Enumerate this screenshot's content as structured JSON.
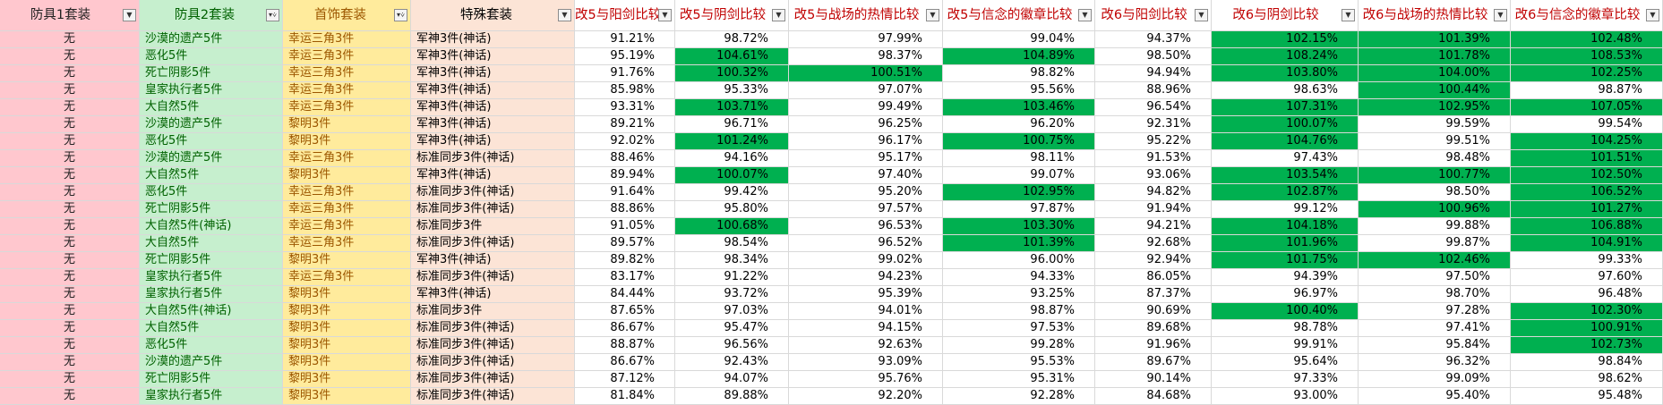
{
  "headers": [
    {
      "label": "防具1套装",
      "filter": "dropdown"
    },
    {
      "label": "防具2套装",
      "filter": "filtered"
    },
    {
      "label": "首饰套装",
      "filter": "filtered"
    },
    {
      "label": "特殊套装",
      "filter": "dropdown"
    },
    {
      "label": "改5与阳剑比较",
      "filter": "dropdown"
    },
    {
      "label": "改5与阴剑比较",
      "filter": "dropdown"
    },
    {
      "label": "改5与战场的热情比较",
      "filter": "dropdown"
    },
    {
      "label": "改5与信念的徽章比较",
      "filter": "dropdown"
    },
    {
      "label": "改6与阳剑比较",
      "filter": "dropdown"
    },
    {
      "label": "改6与阴剑比较",
      "filter": "dropdown"
    },
    {
      "label": "改6与战场的热情比较",
      "filter": "dropdown"
    },
    {
      "label": "改6与信念的徽章比较",
      "filter": "dropdown"
    }
  ],
  "colors": {
    "highlight": "#00b050"
  },
  "rows": [
    {
      "a1": "无",
      "a2": "沙漠的遗产5件",
      "acc": "幸运三角3件",
      "sp": "军神3件(神话)",
      "v": [
        {
          "t": "91.21%",
          "h": false
        },
        {
          "t": "98.72%",
          "h": false
        },
        {
          "t": "97.99%",
          "h": false
        },
        {
          "t": "99.04%",
          "h": false
        },
        {
          "t": "94.37%",
          "h": false
        },
        {
          "t": "102.15%",
          "h": true
        },
        {
          "t": "101.39%",
          "h": true
        },
        {
          "t": "102.48%",
          "h": true
        }
      ]
    },
    {
      "a1": "无",
      "a2": "恶化5件",
      "acc": "幸运三角3件",
      "sp": "军神3件(神话)",
      "v": [
        {
          "t": "95.19%",
          "h": false
        },
        {
          "t": "104.61%",
          "h": true
        },
        {
          "t": "98.37%",
          "h": false
        },
        {
          "t": "104.89%",
          "h": true
        },
        {
          "t": "98.50%",
          "h": false
        },
        {
          "t": "108.24%",
          "h": true
        },
        {
          "t": "101.78%",
          "h": true
        },
        {
          "t": "108.53%",
          "h": true
        }
      ]
    },
    {
      "a1": "无",
      "a2": "死亡阴影5件",
      "acc": "幸运三角3件",
      "sp": "军神3件(神话)",
      "v": [
        {
          "t": "91.76%",
          "h": false
        },
        {
          "t": "100.32%",
          "h": true
        },
        {
          "t": "100.51%",
          "h": true
        },
        {
          "t": "98.82%",
          "h": false
        },
        {
          "t": "94.94%",
          "h": false
        },
        {
          "t": "103.80%",
          "h": true
        },
        {
          "t": "104.00%",
          "h": true
        },
        {
          "t": "102.25%",
          "h": true
        }
      ]
    },
    {
      "a1": "无",
      "a2": "皇家执行者5件",
      "acc": "幸运三角3件",
      "sp": "军神3件(神话)",
      "v": [
        {
          "t": "85.98%",
          "h": false
        },
        {
          "t": "95.33%",
          "h": false
        },
        {
          "t": "97.07%",
          "h": false
        },
        {
          "t": "95.56%",
          "h": false
        },
        {
          "t": "88.96%",
          "h": false
        },
        {
          "t": "98.63%",
          "h": false
        },
        {
          "t": "100.44%",
          "h": true
        },
        {
          "t": "98.87%",
          "h": false
        }
      ]
    },
    {
      "a1": "无",
      "a2": "大自然5件",
      "acc": "幸运三角3件",
      "sp": "军神3件(神话)",
      "v": [
        {
          "t": "93.31%",
          "h": false
        },
        {
          "t": "103.71%",
          "h": true
        },
        {
          "t": "99.49%",
          "h": false
        },
        {
          "t": "103.46%",
          "h": true
        },
        {
          "t": "96.54%",
          "h": false
        },
        {
          "t": "107.31%",
          "h": true
        },
        {
          "t": "102.95%",
          "h": true
        },
        {
          "t": "107.05%",
          "h": true
        }
      ]
    },
    {
      "a1": "无",
      "a2": "沙漠的遗产5件",
      "acc": "黎明3件",
      "sp": "军神3件(神话)",
      "v": [
        {
          "t": "89.21%",
          "h": false
        },
        {
          "t": "96.71%",
          "h": false
        },
        {
          "t": "96.25%",
          "h": false
        },
        {
          "t": "96.20%",
          "h": false
        },
        {
          "t": "92.31%",
          "h": false
        },
        {
          "t": "100.07%",
          "h": true
        },
        {
          "t": "99.59%",
          "h": false
        },
        {
          "t": "99.54%",
          "h": false
        }
      ]
    },
    {
      "a1": "无",
      "a2": "恶化5件",
      "acc": "黎明3件",
      "sp": "军神3件(神话)",
      "v": [
        {
          "t": "92.02%",
          "h": false
        },
        {
          "t": "101.24%",
          "h": true
        },
        {
          "t": "96.17%",
          "h": false
        },
        {
          "t": "100.75%",
          "h": true
        },
        {
          "t": "95.22%",
          "h": false
        },
        {
          "t": "104.76%",
          "h": true
        },
        {
          "t": "99.51%",
          "h": false
        },
        {
          "t": "104.25%",
          "h": true
        }
      ]
    },
    {
      "a1": "无",
      "a2": "沙漠的遗产5件",
      "acc": "幸运三角3件",
      "sp": "标准同步3件(神话)",
      "v": [
        {
          "t": "88.46%",
          "h": false
        },
        {
          "t": "94.16%",
          "h": false
        },
        {
          "t": "95.17%",
          "h": false
        },
        {
          "t": "98.11%",
          "h": false
        },
        {
          "t": "91.53%",
          "h": false
        },
        {
          "t": "97.43%",
          "h": false
        },
        {
          "t": "98.48%",
          "h": false
        },
        {
          "t": "101.51%",
          "h": true
        }
      ]
    },
    {
      "a1": "无",
      "a2": "大自然5件",
      "acc": "黎明3件",
      "sp": "军神3件(神话)",
      "v": [
        {
          "t": "89.94%",
          "h": false
        },
        {
          "t": "100.07%",
          "h": true
        },
        {
          "t": "97.40%",
          "h": false
        },
        {
          "t": "99.07%",
          "h": false
        },
        {
          "t": "93.06%",
          "h": false
        },
        {
          "t": "103.54%",
          "h": true
        },
        {
          "t": "100.77%",
          "h": true
        },
        {
          "t": "102.50%",
          "h": true
        }
      ]
    },
    {
      "a1": "无",
      "a2": "恶化5件",
      "acc": "幸运三角3件",
      "sp": "标准同步3件(神话)",
      "v": [
        {
          "t": "91.64%",
          "h": false
        },
        {
          "t": "99.42%",
          "h": false
        },
        {
          "t": "95.20%",
          "h": false
        },
        {
          "t": "102.95%",
          "h": true
        },
        {
          "t": "94.82%",
          "h": false
        },
        {
          "t": "102.87%",
          "h": true
        },
        {
          "t": "98.50%",
          "h": false
        },
        {
          "t": "106.52%",
          "h": true
        }
      ]
    },
    {
      "a1": "无",
      "a2": "死亡阴影5件",
      "acc": "幸运三角3件",
      "sp": "标准同步3件(神话)",
      "v": [
        {
          "t": "88.86%",
          "h": false
        },
        {
          "t": "95.80%",
          "h": false
        },
        {
          "t": "97.57%",
          "h": false
        },
        {
          "t": "97.87%",
          "h": false
        },
        {
          "t": "91.94%",
          "h": false
        },
        {
          "t": "99.12%",
          "h": false
        },
        {
          "t": "100.96%",
          "h": true
        },
        {
          "t": "101.27%",
          "h": true
        }
      ]
    },
    {
      "a1": "无",
      "a2": "大自然5件(神话)",
      "acc": "幸运三角3件",
      "sp": "标准同步3件",
      "v": [
        {
          "t": "91.05%",
          "h": false
        },
        {
          "t": "100.68%",
          "h": true
        },
        {
          "t": "96.53%",
          "h": false
        },
        {
          "t": "103.30%",
          "h": true
        },
        {
          "t": "94.21%",
          "h": false
        },
        {
          "t": "104.18%",
          "h": true
        },
        {
          "t": "99.88%",
          "h": false
        },
        {
          "t": "106.88%",
          "h": true
        }
      ]
    },
    {
      "a1": "无",
      "a2": "大自然5件",
      "acc": "幸运三角3件",
      "sp": "标准同步3件(神话)",
      "v": [
        {
          "t": "89.57%",
          "h": false
        },
        {
          "t": "98.54%",
          "h": false
        },
        {
          "t": "96.52%",
          "h": false
        },
        {
          "t": "101.39%",
          "h": true
        },
        {
          "t": "92.68%",
          "h": false
        },
        {
          "t": "101.96%",
          "h": true
        },
        {
          "t": "99.87%",
          "h": false
        },
        {
          "t": "104.91%",
          "h": true
        }
      ]
    },
    {
      "a1": "无",
      "a2": "死亡阴影5件",
      "acc": "黎明3件",
      "sp": "军神3件(神话)",
      "v": [
        {
          "t": "89.82%",
          "h": false
        },
        {
          "t": "98.34%",
          "h": false
        },
        {
          "t": "99.02%",
          "h": false
        },
        {
          "t": "96.00%",
          "h": false
        },
        {
          "t": "92.94%",
          "h": false
        },
        {
          "t": "101.75%",
          "h": true
        },
        {
          "t": "102.46%",
          "h": true
        },
        {
          "t": "99.33%",
          "h": false
        }
      ]
    },
    {
      "a1": "无",
      "a2": "皇家执行者5件",
      "acc": "幸运三角3件",
      "sp": "标准同步3件(神话)",
      "v": [
        {
          "t": "83.17%",
          "h": false
        },
        {
          "t": "91.22%",
          "h": false
        },
        {
          "t": "94.23%",
          "h": false
        },
        {
          "t": "94.33%",
          "h": false
        },
        {
          "t": "86.05%",
          "h": false
        },
        {
          "t": "94.39%",
          "h": false
        },
        {
          "t": "97.50%",
          "h": false
        },
        {
          "t": "97.60%",
          "h": false
        }
      ]
    },
    {
      "a1": "无",
      "a2": "皇家执行者5件",
      "acc": "黎明3件",
      "sp": "军神3件(神话)",
      "v": [
        {
          "t": "84.44%",
          "h": false
        },
        {
          "t": "93.72%",
          "h": false
        },
        {
          "t": "95.39%",
          "h": false
        },
        {
          "t": "93.25%",
          "h": false
        },
        {
          "t": "87.37%",
          "h": false
        },
        {
          "t": "96.97%",
          "h": false
        },
        {
          "t": "98.70%",
          "h": false
        },
        {
          "t": "96.48%",
          "h": false
        }
      ]
    },
    {
      "a1": "无",
      "a2": "大自然5件(神话)",
      "acc": "黎明3件",
      "sp": "标准同步3件",
      "v": [
        {
          "t": "87.65%",
          "h": false
        },
        {
          "t": "97.03%",
          "h": false
        },
        {
          "t": "94.01%",
          "h": false
        },
        {
          "t": "98.87%",
          "h": false
        },
        {
          "t": "90.69%",
          "h": false
        },
        {
          "t": "100.40%",
          "h": true
        },
        {
          "t": "97.28%",
          "h": false
        },
        {
          "t": "102.30%",
          "h": true
        }
      ]
    },
    {
      "a1": "无",
      "a2": "大自然5件",
      "acc": "黎明3件",
      "sp": "标准同步3件(神话)",
      "v": [
        {
          "t": "86.67%",
          "h": false
        },
        {
          "t": "95.47%",
          "h": false
        },
        {
          "t": "94.15%",
          "h": false
        },
        {
          "t": "97.53%",
          "h": false
        },
        {
          "t": "89.68%",
          "h": false
        },
        {
          "t": "98.78%",
          "h": false
        },
        {
          "t": "97.41%",
          "h": false
        },
        {
          "t": "100.91%",
          "h": true
        }
      ]
    },
    {
      "a1": "无",
      "a2": "恶化5件",
      "acc": "黎明3件",
      "sp": "标准同步3件(神话)",
      "v": [
        {
          "t": "88.87%",
          "h": false
        },
        {
          "t": "96.56%",
          "h": false
        },
        {
          "t": "92.63%",
          "h": false
        },
        {
          "t": "99.28%",
          "h": false
        },
        {
          "t": "91.96%",
          "h": false
        },
        {
          "t": "99.91%",
          "h": false
        },
        {
          "t": "95.84%",
          "h": false
        },
        {
          "t": "102.73%",
          "h": true
        }
      ]
    },
    {
      "a1": "无",
      "a2": "沙漠的遗产5件",
      "acc": "黎明3件",
      "sp": "标准同步3件(神话)",
      "v": [
        {
          "t": "86.67%",
          "h": false
        },
        {
          "t": "92.43%",
          "h": false
        },
        {
          "t": "93.09%",
          "h": false
        },
        {
          "t": "95.53%",
          "h": false
        },
        {
          "t": "89.67%",
          "h": false
        },
        {
          "t": "95.64%",
          "h": false
        },
        {
          "t": "96.32%",
          "h": false
        },
        {
          "t": "98.84%",
          "h": false
        }
      ]
    },
    {
      "a1": "无",
      "a2": "死亡阴影5件",
      "acc": "黎明3件",
      "sp": "标准同步3件(神话)",
      "v": [
        {
          "t": "87.12%",
          "h": false
        },
        {
          "t": "94.07%",
          "h": false
        },
        {
          "t": "95.76%",
          "h": false
        },
        {
          "t": "95.31%",
          "h": false
        },
        {
          "t": "90.14%",
          "h": false
        },
        {
          "t": "97.33%",
          "h": false
        },
        {
          "t": "99.09%",
          "h": false
        },
        {
          "t": "98.62%",
          "h": false
        }
      ]
    },
    {
      "a1": "无",
      "a2": "皇家执行者5件",
      "acc": "黎明3件",
      "sp": "标准同步3件(神话)",
      "v": [
        {
          "t": "81.84%",
          "h": false
        },
        {
          "t": "89.88%",
          "h": false
        },
        {
          "t": "92.20%",
          "h": false
        },
        {
          "t": "92.28%",
          "h": false
        },
        {
          "t": "84.68%",
          "h": false
        },
        {
          "t": "93.00%",
          "h": false
        },
        {
          "t": "95.40%",
          "h": false
        },
        {
          "t": "95.48%",
          "h": false
        }
      ]
    }
  ]
}
